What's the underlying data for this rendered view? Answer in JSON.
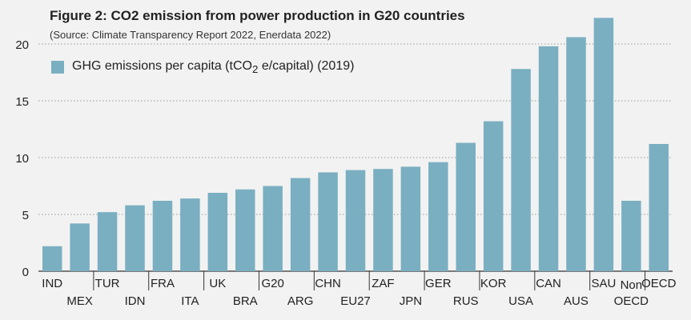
{
  "title": "Figure 2: CO2 emission from power production in G20 countries",
  "subtitle": "(Source: Climate Transparency Report 2022, Enerdata 2022)",
  "legend": {
    "label_main": "GHG emissions per capita (tCO",
    "label_sub": "2",
    "label_rest": " e/capital) (2019)"
  },
  "colors": {
    "bar": "#7aafc1",
    "axis": "#333333",
    "grid": "#9a9a9a",
    "background": "#f2f2f2"
  },
  "chart_data": {
    "type": "bar",
    "title": "Figure 2: CO2 emission from power production in G20 countries",
    "subtitle": "(Source: Climate Transparency Report 2022, Enerdata 2022)",
    "categories": [
      "IND",
      "MEX",
      "TUR",
      "IDN",
      "FRA",
      "ITA",
      "UK",
      "BRA",
      "G20",
      "ARG",
      "CHN",
      "EU27",
      "ZAF",
      "JPN",
      "GER",
      "RUS",
      "KOR",
      "USA",
      "CAN",
      "AUS",
      "SAU",
      "Non OECD",
      "OECD"
    ],
    "series": [
      {
        "name": "GHG emissions per capita (tCO2 e/capital) (2019)",
        "values": [
          2.2,
          4.2,
          5.2,
          5.8,
          6.2,
          6.4,
          6.9,
          7.2,
          7.5,
          8.2,
          8.7,
          8.9,
          9.0,
          9.2,
          9.6,
          11.3,
          13.2,
          17.8,
          19.8,
          20.6,
          22.3,
          6.2,
          11.2
        ]
      }
    ],
    "yticks": [
      "0",
      "5",
      "10",
      "15",
      "20"
    ],
    "ylim": [
      0,
      22.5
    ],
    "grid": true,
    "legend_position": "top-left"
  }
}
